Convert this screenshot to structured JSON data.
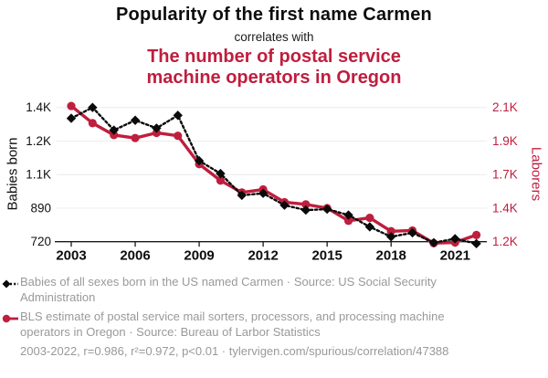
{
  "header": {
    "title": "Popularity of the first name Carmen",
    "connector": "correlates with",
    "subtitle": "The number of postal service\nmachine operators in Oregon"
  },
  "chart_data": {
    "type": "line",
    "title": "Popularity of the first name Carmen correlates with The number of postal service machine operators in Oregon",
    "x": [
      2003,
      2004,
      2005,
      2006,
      2007,
      2008,
      2009,
      2010,
      2011,
      2012,
      2013,
      2014,
      2015,
      2016,
      2017,
      2018,
      2019,
      2020,
      2021,
      2022
    ],
    "x_ticks": [
      2003,
      2006,
      2009,
      2012,
      2015,
      2018,
      2021
    ],
    "series": [
      {
        "name": "Babies of all sexes born in the US named Carmen",
        "axis": "left",
        "color": "#0a0a0a",
        "line_style": "dotted",
        "marker": "diamond",
        "values": [
          1345,
          1400,
          1285,
          1335,
          1295,
          1360,
          1130,
          1065,
          955,
          965,
          905,
          880,
          885,
          855,
          795,
          745,
          765,
          715,
          735,
          710
        ]
      },
      {
        "name": "BLS estimate of postal service mail sorters, processors, and processing machine operators in Oregon",
        "axis": "right",
        "color": "#bf1e3e",
        "line_style": "solid",
        "marker": "circle",
        "values": [
          2110,
          1995,
          1915,
          1895,
          1930,
          1910,
          1720,
          1610,
          1530,
          1550,
          1465,
          1450,
          1425,
          1340,
          1360,
          1270,
          1275,
          1190,
          1195,
          1245
        ]
      }
    ],
    "left_axis": {
      "label": "Babies born",
      "range": [
        720,
        1400
      ],
      "tick_values": [
        720,
        890,
        1060,
        1230,
        1400
      ],
      "tick_labels": [
        "720",
        "890",
        "1.1K",
        "1.2K",
        "1.4K"
      ]
    },
    "right_axis": {
      "label": "Laborers",
      "range": [
        1200,
        2100
      ],
      "tick_values": [
        1200,
        1425,
        1650,
        1875,
        2100
      ],
      "tick_labels": [
        "1.2K",
        "1.4K",
        "1.7K",
        "1.9K",
        "2.1K"
      ]
    },
    "grid": true,
    "legend_position": "bottom"
  },
  "legend": {
    "items": [
      {
        "marker": "black-diamond-dotted",
        "text": "Babies of all sexes born in the US named Carmen · Source: US Social Security\nAdministration"
      },
      {
        "marker": "red-circle-solid",
        "text": "BLS estimate of postal service mail sorters, processors, and processing machine\noperators in Oregon · Source: Bureau of Larbor Statistics"
      }
    ],
    "footer": "2003-2022, r=0.986, r²=0.972, p<0.01 · tylervigen.com/spurious/correlation/47388"
  },
  "colors": {
    "accent_red": "#bf1e3e",
    "series_black": "#0a0a0a",
    "legend_gray": "#999999",
    "grid_line": "#ececec",
    "axis_line": "#1a1a1a"
  }
}
